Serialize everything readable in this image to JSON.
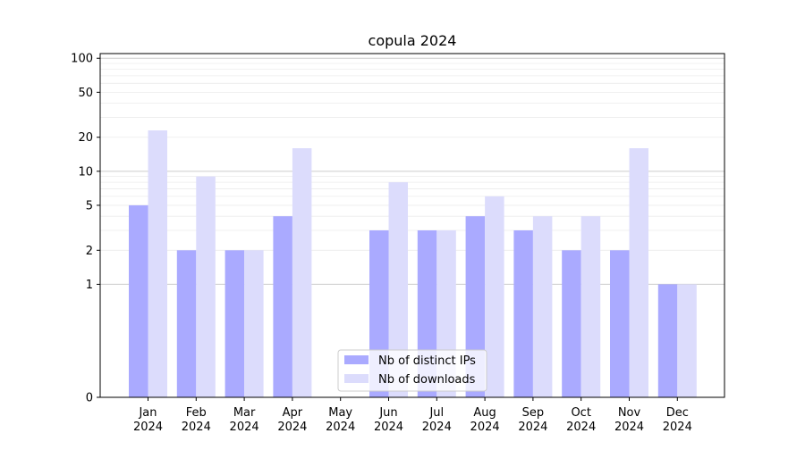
{
  "chart_data": {
    "type": "bar",
    "title": "copula 2024",
    "xlabel": "",
    "ylabel": "",
    "yscale": "symlog",
    "ylim": [
      0,
      110
    ],
    "yticks": [
      0,
      1,
      2,
      5,
      10,
      20,
      50,
      100
    ],
    "grid": "y",
    "legend_position": "lower-center",
    "categories": [
      {
        "month": "Jan",
        "year": "2024"
      },
      {
        "month": "Feb",
        "year": "2024"
      },
      {
        "month": "Mar",
        "year": "2024"
      },
      {
        "month": "Apr",
        "year": "2024"
      },
      {
        "month": "May",
        "year": "2024"
      },
      {
        "month": "Jun",
        "year": "2024"
      },
      {
        "month": "Jul",
        "year": "2024"
      },
      {
        "month": "Aug",
        "year": "2024"
      },
      {
        "month": "Sep",
        "year": "2024"
      },
      {
        "month": "Oct",
        "year": "2024"
      },
      {
        "month": "Nov",
        "year": "2024"
      },
      {
        "month": "Dec",
        "year": "2024"
      }
    ],
    "series": [
      {
        "name": "Nb of distinct IPs",
        "color": "#aaaaff",
        "values": [
          5,
          2,
          2,
          4,
          0,
          3,
          3,
          4,
          3,
          2,
          2,
          1
        ]
      },
      {
        "name": "Nb of downloads",
        "color": "#dcdcfc",
        "values": [
          23,
          9,
          2,
          16,
          0,
          8,
          3,
          6,
          4,
          4,
          16,
          1
        ]
      }
    ]
  }
}
